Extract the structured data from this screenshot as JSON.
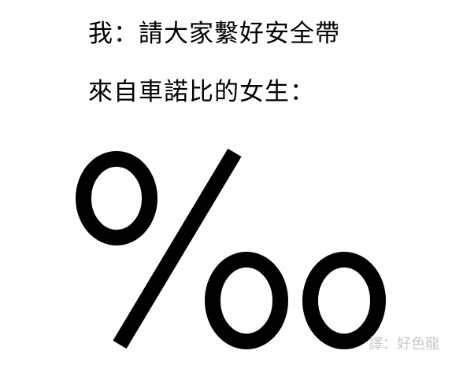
{
  "lines": [
    "我：請大家繫好安全帶",
    "來自車諾比的女生："
  ],
  "symbol": "‰",
  "credit": "譯：好色龍",
  "colors": {
    "background": "#ffffff",
    "text": "#000000",
    "credit": "#c9c9c9"
  }
}
